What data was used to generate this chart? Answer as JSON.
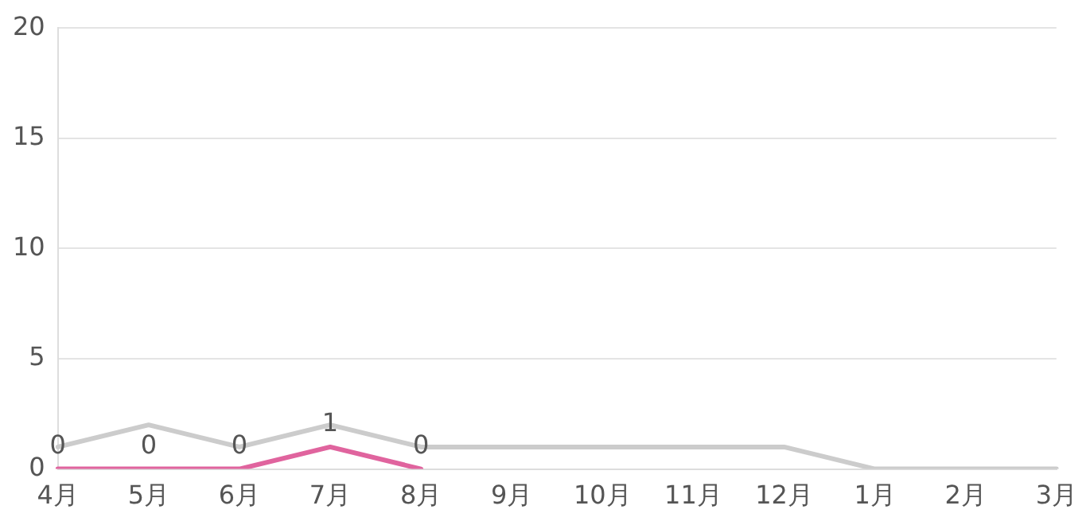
{
  "chart_data": {
    "type": "line",
    "categories": [
      "4月",
      "5月",
      "6月",
      "7月",
      "8月",
      "9月",
      "10月",
      "11月",
      "12月",
      "1月",
      "2月",
      "3月"
    ],
    "series": [
      {
        "color": "#cccccc",
        "values": [
          1,
          2,
          1,
          2,
          1,
          1,
          1,
          1,
          1,
          0,
          0,
          0
        ]
      },
      {
        "color": "#e0649e",
        "values": [
          0,
          0,
          0,
          1,
          0,
          null,
          null,
          null,
          null,
          null,
          null,
          null
        ],
        "value_labels": [
          "0",
          "0",
          "0",
          "1",
          "0",
          null,
          null,
          null,
          null,
          null,
          null,
          null
        ]
      }
    ],
    "ylim": [
      0,
      20
    ],
    "yticks": [
      0,
      5,
      10,
      15,
      20
    ],
    "grid": "y",
    "legend": false,
    "marker": "none",
    "line_style": "solid"
  }
}
